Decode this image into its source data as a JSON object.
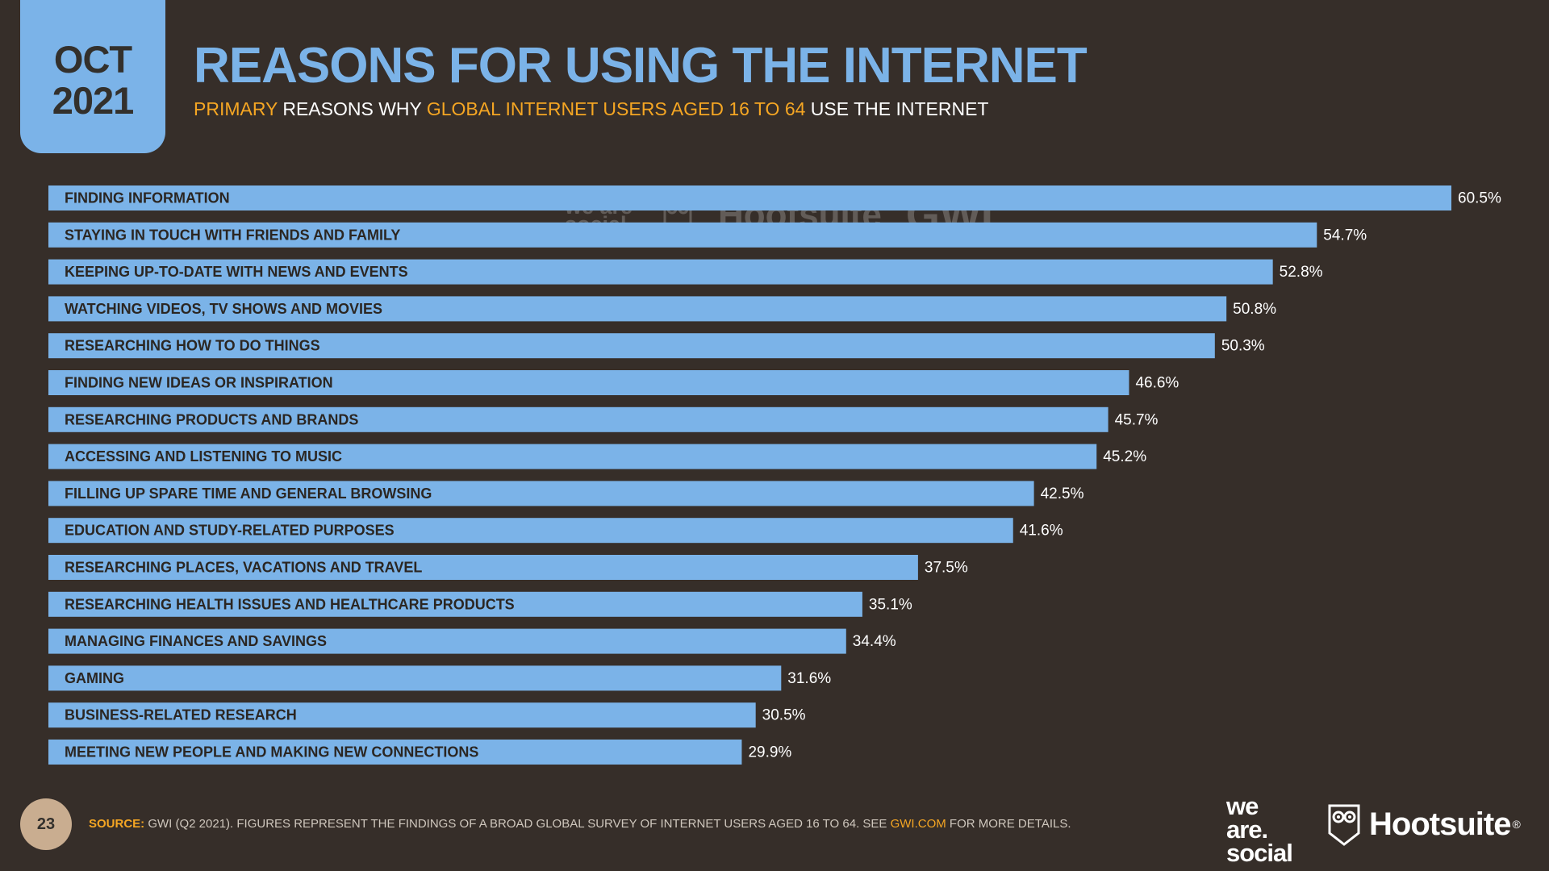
{
  "header": {
    "month": "OCT",
    "year": "2021",
    "title": "REASONS FOR USING THE INTERNET",
    "subtitle_part1": "PRIMARY",
    "subtitle_part2": " REASONS WHY ",
    "subtitle_part3": "GLOBAL INTERNET USERS AGED 16 TO 64",
    "subtitle_part4": " USE THE INTERNET"
  },
  "watermark": {
    "we_are_social": "we are social",
    "hootsuite": "Hootsuite",
    "gwi": "GWI."
  },
  "chart_data": {
    "type": "bar",
    "orientation": "horizontal",
    "categories": [
      "FINDING INFORMATION",
      "STAYING IN TOUCH WITH FRIENDS AND FAMILY",
      "KEEPING UP-TO-DATE WITH NEWS AND EVENTS",
      "WATCHING VIDEOS, TV SHOWS AND MOVIES",
      "RESEARCHING HOW TO DO THINGS",
      "FINDING NEW IDEAS OR INSPIRATION",
      "RESEARCHING PRODUCTS AND BRANDS",
      "ACCESSING AND LISTENING TO MUSIC",
      "FILLING UP SPARE TIME AND GENERAL BROWSING",
      "EDUCATION AND STUDY-RELATED PURPOSES",
      "RESEARCHING PLACES, VACATIONS AND TRAVEL",
      "RESEARCHING HEALTH ISSUES AND HEALTHCARE PRODUCTS",
      "MANAGING FINANCES AND SAVINGS",
      "GAMING",
      "BUSINESS-RELATED RESEARCH",
      "MEETING NEW PEOPLE AND MAKING NEW CONNECTIONS"
    ],
    "values": [
      60.5,
      54.7,
      52.8,
      50.8,
      50.3,
      46.6,
      45.7,
      45.2,
      42.5,
      41.6,
      37.5,
      35.1,
      34.4,
      31.6,
      30.5,
      29.9
    ],
    "value_labels": [
      "60.5%",
      "54.7%",
      "52.8%",
      "50.8%",
      "50.3%",
      "46.6%",
      "45.7%",
      "45.2%",
      "42.5%",
      "41.6%",
      "37.5%",
      "35.1%",
      "34.4%",
      "31.6%",
      "30.5%",
      "29.9%"
    ],
    "xlim": [
      0,
      60.5
    ],
    "grid": false,
    "legend": "none",
    "bar_color": "#7bb3e8",
    "label_color": "#2b2622",
    "value_color": "#ffffff"
  },
  "footer": {
    "page_number": "23",
    "source_label": "SOURCE:",
    "source_text": " GWI (Q2 2021). FIGURES REPRESENT THE FINDINGS OF A BROAD GLOBAL SURVEY OF INTERNET USERS AGED 16 TO 64. SEE ",
    "source_link": "GWI.COM",
    "source_tail": " FOR MORE DETAILS.",
    "logo_we_are_social": [
      "we",
      "are.",
      "social"
    ],
    "logo_hootsuite": "Hootsuite",
    "logo_hootsuite_mark": "®"
  },
  "colors": {
    "background": "#362e29",
    "accent_blue": "#7bb3e8",
    "accent_orange": "#f5a623"
  }
}
